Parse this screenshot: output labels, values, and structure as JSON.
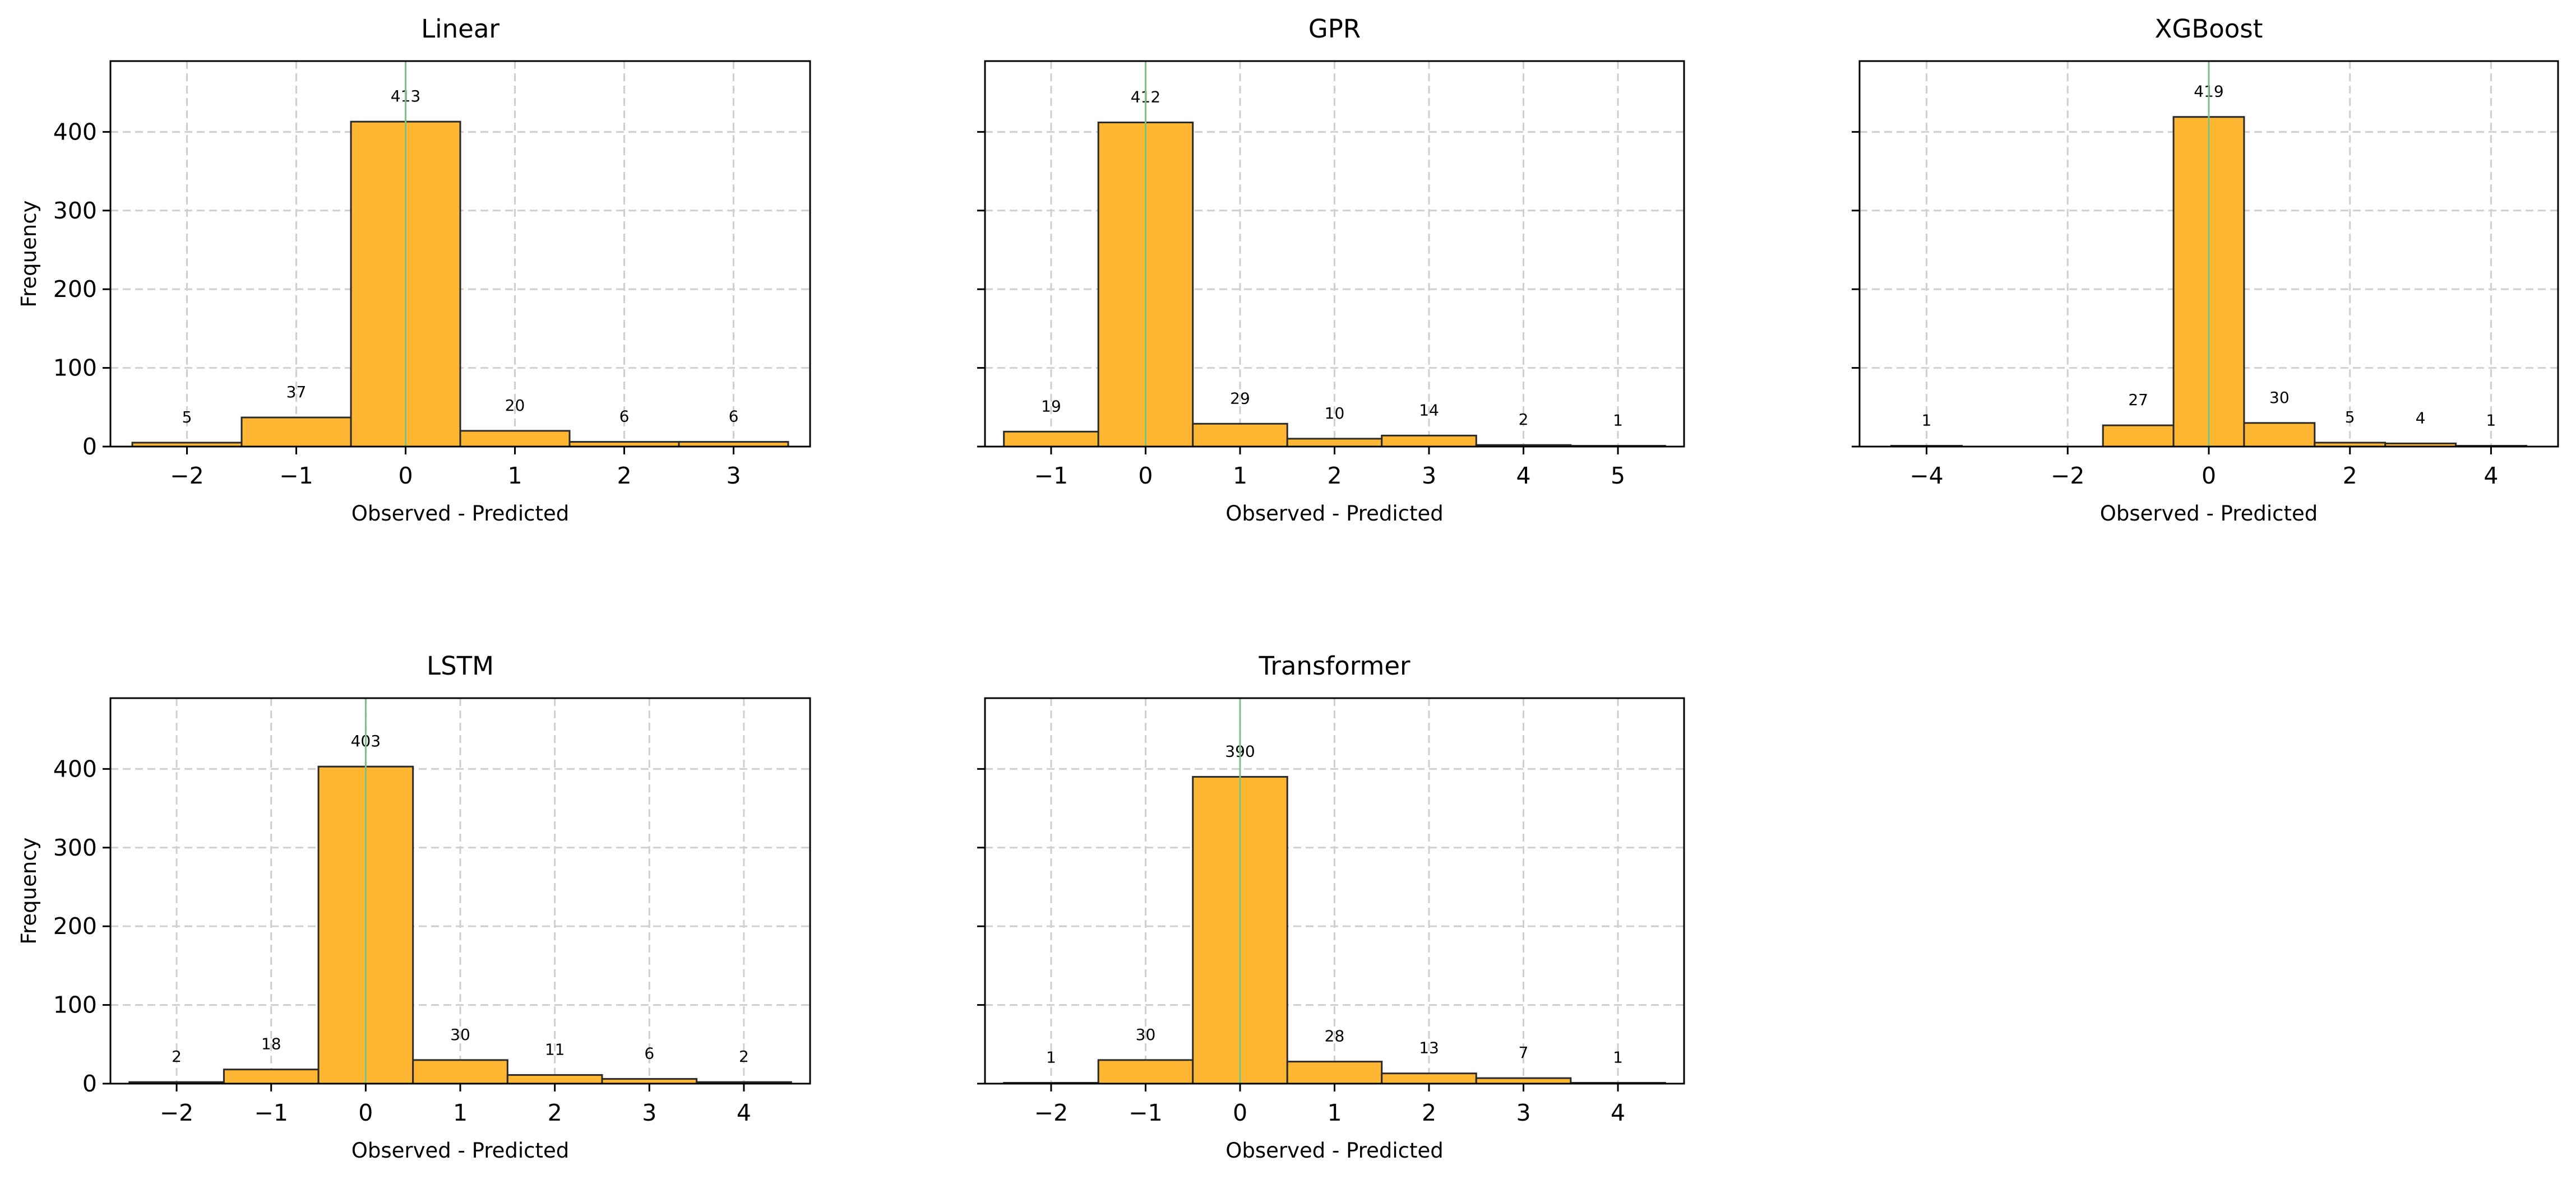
{
  "style": {
    "bar_color": "#ffb733",
    "bar_edge": "#2a2a2a",
    "grid_color": "#cfcfcf",
    "zero_line_color": "#7fbf7f",
    "background": "#ffffff"
  },
  "chart_data": [
    {
      "type": "bar",
      "title": "Linear",
      "xlabel": "Observed - Predicted",
      "ylabel": "Frequency",
      "x": [
        -2,
        -1,
        0,
        1,
        2,
        3
      ],
      "values": [
        5,
        37,
        413,
        20,
        6,
        6
      ],
      "xlim": [
        -2.7,
        3.7
      ],
      "ylim": [
        0,
        490
      ],
      "xticks": [
        -2,
        -1,
        0,
        1,
        2,
        3
      ],
      "xtick_labels": [
        "−2",
        "−1",
        "0",
        "1",
        "2",
        "3"
      ],
      "yticks": [
        0,
        100,
        200,
        300,
        400
      ],
      "ytick_labels": [
        "0",
        "100",
        "200",
        "300",
        "400"
      ],
      "grid": true
    },
    {
      "type": "bar",
      "title": "GPR",
      "xlabel": "Observed - Predicted",
      "ylabel": "",
      "x": [
        -1,
        0,
        1,
        2,
        3,
        4,
        5
      ],
      "values": [
        19,
        412,
        29,
        10,
        14,
        2,
        1
      ],
      "xlim": [
        -1.7,
        5.7
      ],
      "ylim": [
        0,
        490
      ],
      "xticks": [
        -1,
        0,
        1,
        2,
        3,
        4,
        5
      ],
      "xtick_labels": [
        "−1",
        "0",
        "1",
        "2",
        "3",
        "4",
        "5"
      ],
      "yticks": [
        0,
        100,
        200,
        300,
        400
      ],
      "ytick_labels": [],
      "grid": true
    },
    {
      "type": "bar",
      "title": "XGBoost",
      "xlabel": "Observed - Predicted",
      "ylabel": "",
      "x": [
        -4,
        -3,
        -2,
        -1,
        0,
        1,
        2,
        3,
        4
      ],
      "values": [
        1,
        0,
        0,
        27,
        419,
        30,
        5,
        4,
        1
      ],
      "value_labels": [
        "1",
        "",
        "",
        "27",
        "419",
        "30",
        "5",
        "4",
        "1"
      ],
      "xlim": [
        -4.95,
        4.95
      ],
      "ylim": [
        0,
        490
      ],
      "xticks": [
        -4,
        -2,
        0,
        2,
        4
      ],
      "xtick_labels": [
        "−4",
        "−2",
        "0",
        "2",
        "4"
      ],
      "yticks": [
        0,
        100,
        200,
        300,
        400
      ],
      "ytick_labels": [],
      "grid": true
    },
    {
      "type": "bar",
      "title": "LSTM",
      "xlabel": "Observed - Predicted",
      "ylabel": "Frequency",
      "x": [
        -2,
        -1,
        0,
        1,
        2,
        3,
        4
      ],
      "values": [
        2,
        18,
        403,
        30,
        11,
        6,
        2
      ],
      "xlim": [
        -2.7,
        4.7
      ],
      "ylim": [
        0,
        490
      ],
      "xticks": [
        -2,
        -1,
        0,
        1,
        2,
        3,
        4
      ],
      "xtick_labels": [
        "−2",
        "−1",
        "0",
        "1",
        "2",
        "3",
        "4"
      ],
      "yticks": [
        0,
        100,
        200,
        300,
        400
      ],
      "ytick_labels": [
        "0",
        "100",
        "200",
        "300",
        "400"
      ],
      "grid": true
    },
    {
      "type": "bar",
      "title": "Transformer",
      "xlabel": "Observed - Predicted",
      "ylabel": "",
      "x": [
        -2,
        -1,
        0,
        1,
        2,
        3,
        4
      ],
      "values": [
        1,
        30,
        390,
        28,
        13,
        7,
        1
      ],
      "xlim": [
        -2.7,
        4.7
      ],
      "ylim": [
        0,
        490
      ],
      "xticks": [
        -2,
        -1,
        0,
        1,
        2,
        3,
        4
      ],
      "xtick_labels": [
        "−2",
        "−1",
        "0",
        "1",
        "2",
        "3",
        "4"
      ],
      "yticks": [
        0,
        100,
        200,
        300,
        400
      ],
      "ytick_labels": [],
      "grid": true
    }
  ]
}
